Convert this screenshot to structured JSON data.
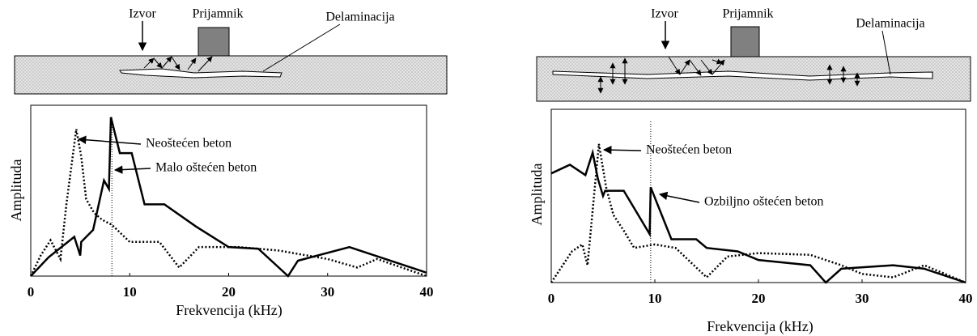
{
  "chart_data": [
    {
      "type": "line",
      "diagram_labels": {
        "source": "Izvor",
        "receiver": "Prijamnik",
        "defect": "Delaminacija"
      },
      "ylabel": "Amplituda",
      "xlabel": "Frekvencija (kHz)",
      "xlim": [
        0,
        40
      ],
      "ylim": [
        0,
        100
      ],
      "xticks": [
        0,
        10,
        20,
        30,
        40
      ],
      "vline": 8.2,
      "series": [
        {
          "name": "Neoštećen beton",
          "color": "#000000",
          "style": "dotted",
          "x": [
            0,
            1,
            2,
            3,
            3.6,
            4.6,
            5.1,
            5.6,
            6.4,
            7.2,
            8.2,
            10,
            13,
            15,
            17,
            21,
            25,
            30,
            33,
            35,
            40
          ],
          "values": [
            0,
            12,
            21,
            10,
            42,
            86,
            70,
            45,
            37,
            33,
            30,
            20,
            20,
            5,
            17,
            17,
            15,
            10,
            5,
            10,
            0
          ]
        },
        {
          "name": "Malo oštećen beton",
          "color": "#000000",
          "style": "solid",
          "x": [
            0,
            1.8,
            4.4,
            5.0,
            5.1,
            6.3,
            7.4,
            7.9,
            8.1,
            9,
            10.2,
            11.5,
            13.5,
            16.7,
            20,
            23,
            26,
            27,
            32.2,
            40
          ],
          "values": [
            0,
            11,
            23,
            12,
            20,
            27,
            56,
            51,
            93,
            72,
            72,
            42,
            42,
            29,
            17,
            16,
            0,
            9,
            17,
            2
          ]
        }
      ]
    },
    {
      "type": "line",
      "diagram_labels": {
        "source": "Izvor",
        "receiver": "Prijamnik",
        "defect": "Delaminacija"
      },
      "ylabel": "Amplituda",
      "xlabel": "Frekvencija (kHz)",
      "xlim": [
        0,
        40
      ],
      "ylim": [
        0,
        100
      ],
      "xticks": [
        0,
        10,
        20,
        30,
        40
      ],
      "vline": 9.6,
      "series": [
        {
          "name": "Neoštećen beton",
          "color": "#000000",
          "style": "dotted",
          "x": [
            0,
            2,
            3,
            3.5,
            4.6,
            5.3,
            6,
            7,
            8,
            10,
            12,
            15,
            17,
            20,
            25,
            28,
            30,
            33,
            36,
            40
          ],
          "values": [
            0,
            18,
            22,
            10,
            80,
            55,
            39,
            30,
            20,
            22,
            20,
            3,
            15,
            17,
            16,
            10,
            5,
            3,
            10,
            0
          ]
        },
        {
          "name": "Ozbiljno oštećen beton",
          "color": "#000000",
          "style": "solid",
          "x": [
            0,
            1.8,
            3.3,
            4,
            4.5,
            5,
            5.2,
            7,
            9.5,
            9.6,
            11.6,
            14,
            15,
            18,
            20,
            25,
            26.5,
            28,
            33,
            36,
            40
          ],
          "values": [
            63,
            68,
            62,
            75,
            60,
            50,
            53,
            53,
            28,
            55,
            25,
            25,
            20,
            18,
            13,
            10,
            0,
            8,
            10,
            8,
            0
          ]
        }
      ]
    }
  ]
}
